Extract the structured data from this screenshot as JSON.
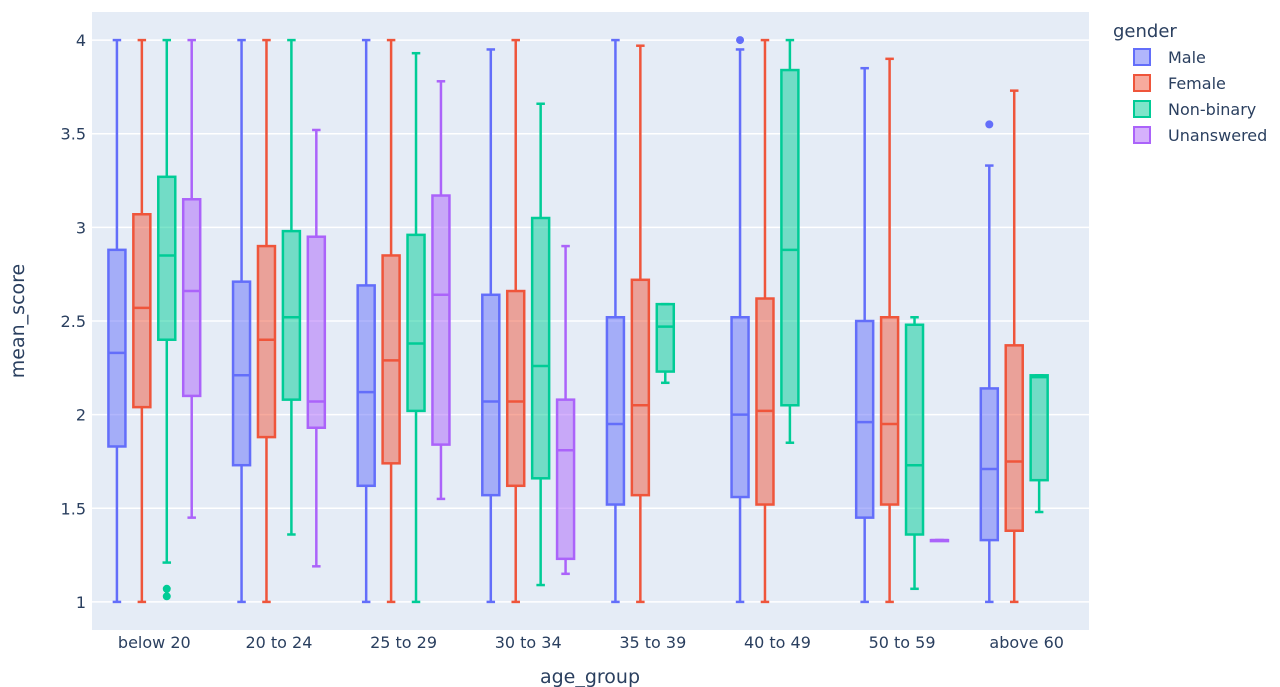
{
  "chart_data": {
    "type": "box",
    "xlabel": "age_group",
    "ylabel": "mean_score",
    "ylim": [
      0.85,
      4.15
    ],
    "yticks": [
      1,
      1.5,
      2,
      2.5,
      3,
      3.5,
      4
    ],
    "ytick_labels": [
      "1",
      "1.5",
      "2",
      "2.5",
      "3",
      "3.5",
      "4"
    ],
    "categories": [
      "below 20",
      "20 to 24",
      "25 to 29",
      "30 to 34",
      "35 to 39",
      "40 to 49",
      "50 to 59",
      "above 60"
    ],
    "legend": {
      "title": "gender",
      "position": "right"
    },
    "grid": true,
    "series": [
      {
        "name": "Male",
        "color": "#636efa",
        "boxes": [
          {
            "min": 1,
            "q1": 1.83,
            "median": 2.33,
            "q3": 2.88,
            "max": 4,
            "outliers": []
          },
          {
            "min": 1,
            "q1": 1.73,
            "median": 2.21,
            "q3": 2.71,
            "max": 4,
            "outliers": []
          },
          {
            "min": 1,
            "q1": 1.62,
            "median": 2.12,
            "q3": 2.69,
            "max": 4,
            "outliers": []
          },
          {
            "min": 1,
            "q1": 1.57,
            "median": 2.07,
            "q3": 2.64,
            "max": 3.95,
            "outliers": []
          },
          {
            "min": 1,
            "q1": 1.52,
            "median": 1.95,
            "q3": 2.52,
            "max": 4,
            "outliers": []
          },
          {
            "min": 1,
            "q1": 1.56,
            "median": 2.0,
            "q3": 2.52,
            "max": 3.95,
            "outliers": [
              4
            ]
          },
          {
            "min": 1,
            "q1": 1.45,
            "median": 1.96,
            "q3": 2.5,
            "max": 3.85,
            "outliers": []
          },
          {
            "min": 1,
            "q1": 1.33,
            "median": 1.71,
            "q3": 2.14,
            "max": 3.33,
            "outliers": [
              3.55
            ]
          }
        ]
      },
      {
        "name": "Female",
        "color": "#ef553b",
        "boxes": [
          {
            "min": 1,
            "q1": 2.04,
            "median": 2.57,
            "q3": 3.07,
            "max": 4,
            "outliers": []
          },
          {
            "min": 1,
            "q1": 1.88,
            "median": 2.4,
            "q3": 2.9,
            "max": 4,
            "outliers": []
          },
          {
            "min": 1,
            "q1": 1.74,
            "median": 2.29,
            "q3": 2.85,
            "max": 4,
            "outliers": []
          },
          {
            "min": 1,
            "q1": 1.62,
            "median": 2.07,
            "q3": 2.66,
            "max": 4,
            "outliers": []
          },
          {
            "min": 1,
            "q1": 1.57,
            "median": 2.05,
            "q3": 2.72,
            "max": 3.97,
            "outliers": []
          },
          {
            "min": 1,
            "q1": 1.52,
            "median": 2.02,
            "q3": 2.62,
            "max": 4,
            "outliers": []
          },
          {
            "min": 1,
            "q1": 1.52,
            "median": 1.95,
            "q3": 2.52,
            "max": 3.9,
            "outliers": []
          },
          {
            "min": 1,
            "q1": 1.38,
            "median": 1.75,
            "q3": 2.37,
            "max": 3.73,
            "outliers": []
          }
        ]
      },
      {
        "name": "Non-binary",
        "color": "#00cc96",
        "boxes": [
          {
            "min": 1.21,
            "q1": 2.4,
            "median": 2.85,
            "q3": 3.27,
            "max": 4,
            "outliers": [
              1.07,
              1.03
            ]
          },
          {
            "min": 1.36,
            "q1": 2.08,
            "median": 2.52,
            "q3": 2.98,
            "max": 4,
            "outliers": []
          },
          {
            "min": 1,
            "q1": 2.02,
            "median": 2.38,
            "q3": 2.96,
            "max": 3.93,
            "outliers": []
          },
          {
            "min": 1.09,
            "q1": 1.66,
            "median": 2.26,
            "q3": 3.05,
            "max": 3.66,
            "outliers": []
          },
          {
            "min": 2.17,
            "q1": 2.23,
            "median": 2.47,
            "q3": 2.59,
            "max": 2.59,
            "outliers": []
          },
          {
            "min": 1.85,
            "q1": 2.05,
            "median": 2.88,
            "q3": 3.84,
            "max": 4,
            "outliers": []
          },
          {
            "min": 1.07,
            "q1": 1.36,
            "median": 1.73,
            "q3": 2.48,
            "max": 2.52,
            "outliers": []
          },
          {
            "min": 1.48,
            "q1": 1.65,
            "median": 2.2,
            "q3": 2.21,
            "max": 2.21,
            "outliers": []
          }
        ]
      },
      {
        "name": "Unanswered",
        "color": "#ab63fa",
        "boxes": [
          {
            "min": 1.45,
            "q1": 2.1,
            "median": 2.66,
            "q3": 3.15,
            "max": 4,
            "outliers": []
          },
          {
            "min": 1.19,
            "q1": 1.93,
            "median": 2.07,
            "q3": 2.95,
            "max": 3.52,
            "outliers": []
          },
          {
            "min": 1.55,
            "q1": 1.84,
            "median": 2.64,
            "q3": 3.17,
            "max": 3.78,
            "outliers": []
          },
          {
            "min": 1.15,
            "q1": 1.23,
            "median": 1.81,
            "q3": 2.08,
            "max": 2.9,
            "outliers": []
          },
          null,
          null,
          {
            "min": 1.33,
            "q1": 1.33,
            "median": 1.33,
            "q3": 1.33,
            "max": 1.33,
            "outliers": []
          },
          null
        ]
      }
    ]
  }
}
